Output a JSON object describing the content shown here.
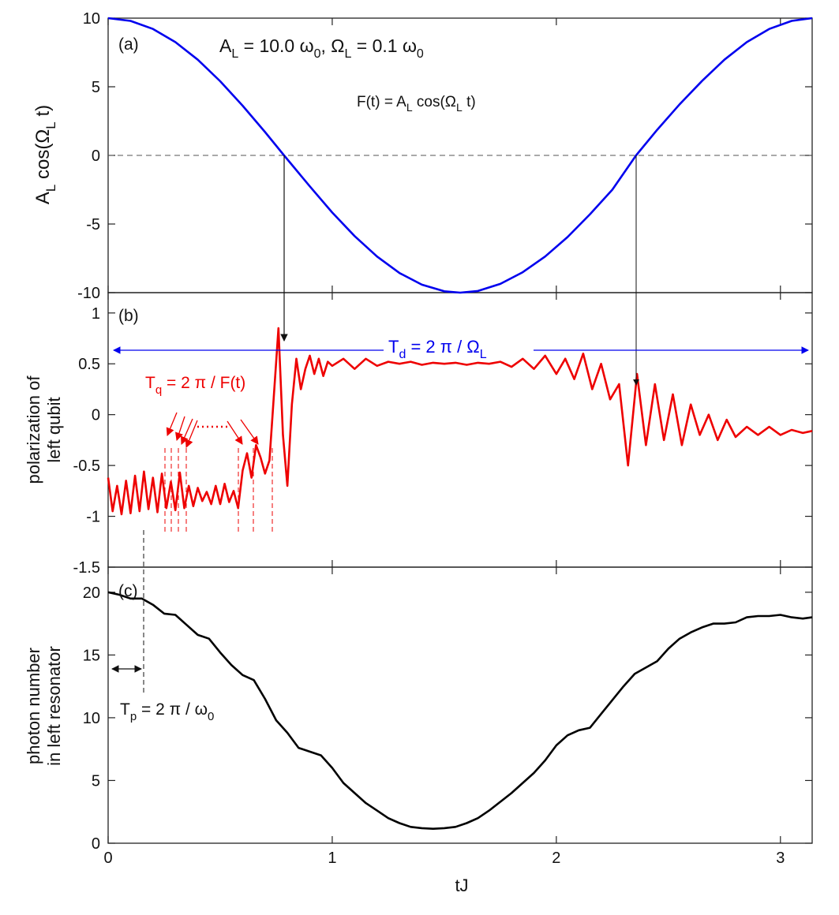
{
  "figure": {
    "xlabel": "tJ",
    "xlim": [
      0,
      3.1416
    ],
    "xticks": [
      0,
      1,
      2,
      3
    ],
    "xtick_labels": [
      "0",
      "1",
      "2",
      "3"
    ],
    "colors": {
      "panel_a": "#0000ee",
      "panel_b": "#ee0000",
      "panel_c": "#000000",
      "annotation_blue": "#0000ee",
      "annotation_red": "#ee0000"
    }
  },
  "chart_data": [
    {
      "type": "line",
      "panel": "(a)",
      "ylabel_main": "A",
      "ylabel_sub1": "L",
      "ylabel_mid": " cos(Ω",
      "ylabel_sub2": "L",
      "ylabel_end": " t)",
      "ylim": [
        -10,
        10
      ],
      "yticks": [
        -10,
        -5,
        0,
        5,
        10
      ],
      "ytick_labels": [
        "-10",
        "-5",
        "0",
        "5",
        "10"
      ],
      "zero_line": 0,
      "annotation_params": {
        "a": "A",
        "a_sub": "L",
        "b": " = 10.0 ω",
        "b_sub": "0",
        "c": ", Ω",
        "c_sub": "L",
        "d": " = 0.1 ω",
        "d_sub": "0"
      },
      "annotation_formula": {
        "a": "F(t) = A",
        "a_sub": "L",
        "b": " cos(Ω",
        "b_sub": "L",
        "c": " t)"
      },
      "series": [
        {
          "name": "A_L cos(Ω_L t)",
          "x": [
            0.0,
            0.1,
            0.2,
            0.3,
            0.4,
            0.5,
            0.6,
            0.7,
            0.785,
            0.9,
            1.0,
            1.1,
            1.2,
            1.3,
            1.4,
            1.5,
            1.571,
            1.65,
            1.75,
            1.85,
            1.95,
            2.05,
            2.15,
            2.25,
            2.356,
            2.45,
            2.55,
            2.65,
            2.75,
            2.85,
            2.95,
            3.05,
            3.1416
          ],
          "values": [
            10.0,
            9.8,
            9.21,
            8.25,
            6.97,
            5.4,
            3.62,
            1.7,
            0.0,
            -2.25,
            -4.16,
            -5.88,
            -7.37,
            -8.57,
            -9.42,
            -9.9,
            -10.0,
            -9.88,
            -9.36,
            -8.51,
            -7.37,
            -5.95,
            -4.29,
            -2.5,
            0.0,
            1.86,
            3.72,
            5.42,
            6.97,
            8.25,
            9.21,
            9.8,
            10.0
          ]
        }
      ]
    },
    {
      "type": "line",
      "panel": "(b)",
      "ylabel_line1": "polarization of",
      "ylabel_line2": "left qubit",
      "ylim": [
        -1.5,
        1.2
      ],
      "yticks": [
        -1.5,
        -1,
        -0.5,
        0,
        0.5,
        1
      ],
      "ytick_labels": [
        "-1.5",
        "-1",
        "-0.5",
        "0",
        "0.5",
        "1"
      ],
      "annotation_Td": {
        "a": "T",
        "a_sub": "d",
        "b": " = 2 π / Ω",
        "b_sub": "L"
      },
      "annotation_Tq": {
        "a": "T",
        "a_sub": "q",
        "b": " = 2 π / F(t)"
      },
      "series": [
        {
          "name": "polarization of left qubit",
          "x": [
            0.0,
            0.02,
            0.04,
            0.06,
            0.08,
            0.1,
            0.12,
            0.14,
            0.16,
            0.18,
            0.2,
            0.22,
            0.24,
            0.26,
            0.28,
            0.3,
            0.32,
            0.34,
            0.36,
            0.38,
            0.4,
            0.42,
            0.44,
            0.46,
            0.48,
            0.5,
            0.52,
            0.54,
            0.56,
            0.58,
            0.6,
            0.62,
            0.64,
            0.66,
            0.68,
            0.7,
            0.72,
            0.74,
            0.76,
            0.78,
            0.8,
            0.82,
            0.84,
            0.86,
            0.88,
            0.9,
            0.92,
            0.94,
            0.96,
            0.98,
            1.0,
            1.05,
            1.1,
            1.15,
            1.2,
            1.25,
            1.3,
            1.35,
            1.4,
            1.45,
            1.5,
            1.55,
            1.6,
            1.65,
            1.7,
            1.75,
            1.8,
            1.85,
            1.9,
            1.95,
            2.0,
            2.04,
            2.08,
            2.12,
            2.16,
            2.2,
            2.24,
            2.28,
            2.32,
            2.36,
            2.4,
            2.44,
            2.48,
            2.52,
            2.56,
            2.6,
            2.64,
            2.68,
            2.72,
            2.76,
            2.8,
            2.85,
            2.9,
            2.95,
            3.0,
            3.05,
            3.1,
            3.1416
          ],
          "values": [
            -0.62,
            -0.95,
            -0.7,
            -0.98,
            -0.65,
            -0.97,
            -0.6,
            -0.95,
            -0.56,
            -0.93,
            -0.62,
            -0.96,
            -0.58,
            -0.92,
            -0.66,
            -0.94,
            -0.57,
            -0.92,
            -0.7,
            -0.9,
            -0.72,
            -0.85,
            -0.76,
            -0.88,
            -0.7,
            -0.88,
            -0.68,
            -0.86,
            -0.75,
            -0.92,
            -0.55,
            -0.38,
            -0.62,
            -0.3,
            -0.42,
            -0.58,
            -0.45,
            0.2,
            0.85,
            -0.2,
            -0.7,
            0.1,
            0.55,
            0.25,
            0.45,
            0.58,
            0.4,
            0.55,
            0.38,
            0.52,
            0.48,
            0.55,
            0.45,
            0.55,
            0.48,
            0.52,
            0.5,
            0.52,
            0.49,
            0.51,
            0.5,
            0.51,
            0.49,
            0.51,
            0.5,
            0.52,
            0.47,
            0.55,
            0.45,
            0.58,
            0.4,
            0.55,
            0.35,
            0.6,
            0.25,
            0.5,
            0.15,
            0.3,
            -0.5,
            0.4,
            -0.3,
            0.3,
            -0.25,
            0.2,
            -0.3,
            0.1,
            -0.2,
            0.0,
            -0.25,
            -0.05,
            -0.22,
            -0.12,
            -0.2,
            -0.12,
            -0.2,
            -0.15,
            -0.18,
            -0.16
          ]
        }
      ]
    },
    {
      "type": "line",
      "panel": "(c)",
      "ylabel_line1": "photon number",
      "ylabel_line2": "in left resonator",
      "ylim": [
        0,
        22
      ],
      "yticks": [
        0,
        5,
        10,
        15,
        20
      ],
      "ytick_labels": [
        "0",
        "5",
        "10",
        "15",
        "20"
      ],
      "annotation_Tp": {
        "a": "T",
        "a_sub": "p",
        "b": " = 2 π / ω",
        "b_sub": "0"
      },
      "series": [
        {
          "name": "photon number in left resonator",
          "x": [
            0.0,
            0.05,
            0.1,
            0.15,
            0.2,
            0.25,
            0.3,
            0.35,
            0.4,
            0.45,
            0.5,
            0.55,
            0.6,
            0.65,
            0.7,
            0.75,
            0.8,
            0.85,
            0.9,
            0.95,
            1.0,
            1.05,
            1.1,
            1.15,
            1.2,
            1.25,
            1.3,
            1.35,
            1.4,
            1.45,
            1.5,
            1.55,
            1.6,
            1.65,
            1.7,
            1.75,
            1.8,
            1.85,
            1.9,
            1.95,
            2.0,
            2.05,
            2.1,
            2.15,
            2.2,
            2.25,
            2.3,
            2.35,
            2.4,
            2.45,
            2.5,
            2.55,
            2.6,
            2.65,
            2.7,
            2.75,
            2.8,
            2.85,
            2.9,
            2.95,
            3.0,
            3.05,
            3.1,
            3.1416
          ],
          "values": [
            20.0,
            19.8,
            19.5,
            19.5,
            19.0,
            18.3,
            18.2,
            17.4,
            16.6,
            16.3,
            15.2,
            14.2,
            13.4,
            13.0,
            11.5,
            9.8,
            8.8,
            7.6,
            7.3,
            7.0,
            6.0,
            4.8,
            4.0,
            3.2,
            2.6,
            2.0,
            1.6,
            1.3,
            1.2,
            1.15,
            1.2,
            1.3,
            1.6,
            2.0,
            2.6,
            3.3,
            4.0,
            4.8,
            5.6,
            6.6,
            7.8,
            8.6,
            9.0,
            9.2,
            10.3,
            11.4,
            12.5,
            13.5,
            14.0,
            14.5,
            15.5,
            16.3,
            16.8,
            17.2,
            17.5,
            17.5,
            17.6,
            18.0,
            18.1,
            18.1,
            18.2,
            18.0,
            17.9,
            18.0
          ]
        }
      ]
    }
  ]
}
